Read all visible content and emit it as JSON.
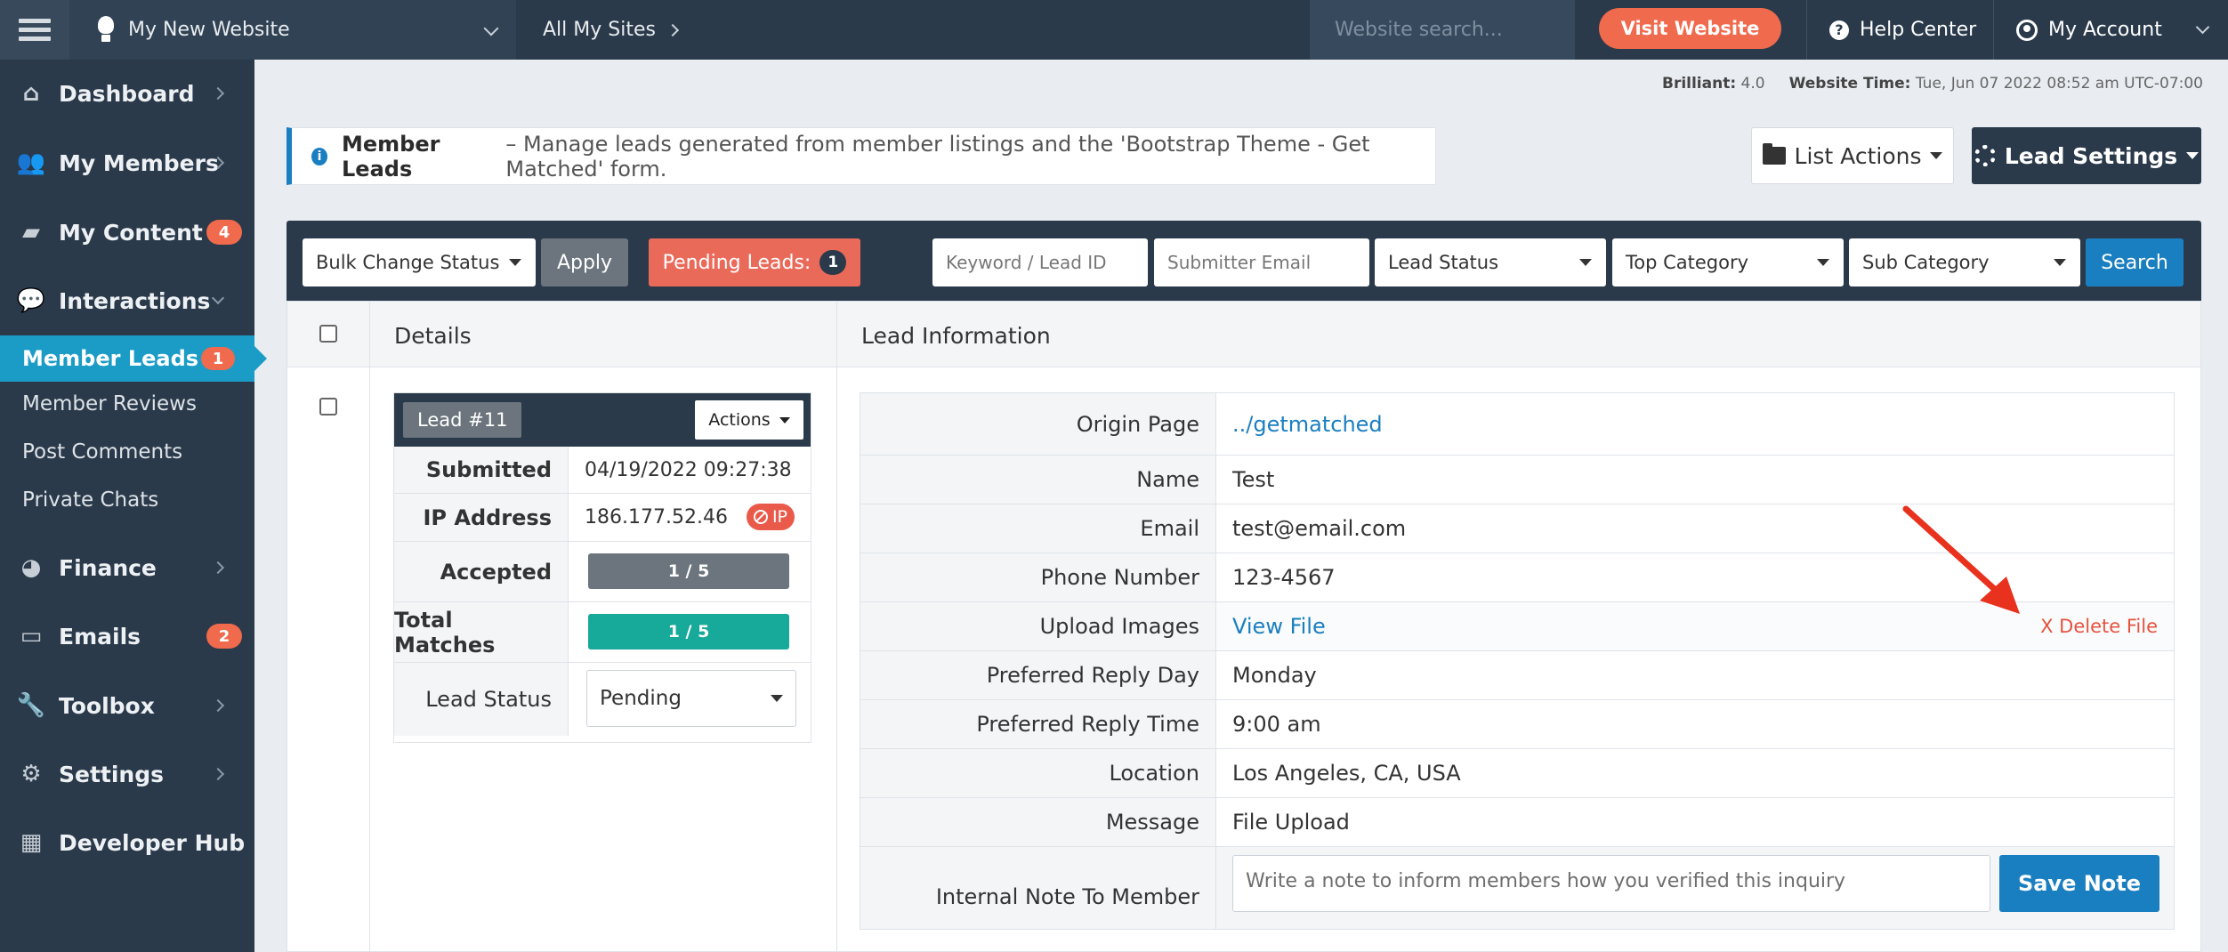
{
  "topbar": {
    "site_name": "My New Website",
    "all_sites": "All My Sites",
    "search_placeholder": "Website search...",
    "visit_label": "Visit Website",
    "help_label": "Help Center",
    "account_label": "My Account"
  },
  "sidebar": {
    "items": [
      {
        "label": "Dashboard",
        "icon": "home-icon"
      },
      {
        "label": "My Members",
        "icon": "users-icon"
      },
      {
        "label": "My Content",
        "icon": "folder-icon",
        "badge": "4"
      },
      {
        "label": "Interactions",
        "icon": "chat-icon"
      },
      {
        "label": "Finance",
        "icon": "pie-chart-icon"
      },
      {
        "label": "Emails",
        "icon": "inbox-icon",
        "badge": "2"
      },
      {
        "label": "Toolbox",
        "icon": "wrench-icon"
      },
      {
        "label": "Settings",
        "icon": "gear-icon"
      },
      {
        "label": "Developer Hub",
        "icon": "grid-icon"
      }
    ],
    "sub_items": [
      {
        "label": "Member Leads",
        "badge": "1"
      },
      {
        "label": "Member Reviews"
      },
      {
        "label": "Post Comments"
      },
      {
        "label": "Private Chats"
      }
    ]
  },
  "meta": {
    "brilliant_label": "Brilliant:",
    "brilliant_value": "4.0",
    "time_label": "Website Time:",
    "time_value": "Tue, Jun 07 2022 08:52 am UTC-07:00"
  },
  "info": {
    "title": "Member Leads",
    "text": "– Manage leads generated from member listings and the 'Bootstrap Theme - Get Matched' form."
  },
  "buttons": {
    "list_actions": "List Actions",
    "lead_settings": "Lead Settings"
  },
  "filters": {
    "bulk_change": "Bulk Change Status",
    "apply": "Apply",
    "pending_label": "Pending Leads:",
    "pending_count": "1",
    "keyword_placeholder": "Keyword / Lead ID",
    "email_placeholder": "Submitter Email",
    "lead_status": "Lead Status",
    "top_category": "Top Category",
    "sub_category": "Sub Category",
    "search": "Search"
  },
  "table": {
    "col_details": "Details",
    "col_info": "Lead Information"
  },
  "lead": {
    "number": "Lead #11",
    "actions": "Actions",
    "submitted_label": "Submitted",
    "submitted_value": "04/19/2022 09:27:38",
    "ip_label": "IP Address",
    "ip_value": "186.177.52.46",
    "ip_badge": "IP",
    "accepted_label": "Accepted",
    "accepted_value": "1 / 5",
    "matches_label": "Total Matches",
    "matches_value": "1 / 5",
    "status_label": "Lead Status",
    "status_value": "Pending"
  },
  "lead_info": {
    "rows": [
      {
        "label": "Origin Page",
        "value": "../getmatched"
      },
      {
        "label": "Name",
        "value": "Test"
      },
      {
        "label": "Email",
        "value": "test@email.com"
      },
      {
        "label": "Phone Number",
        "value": "123-4567"
      },
      {
        "label": "Upload Images",
        "value": "View File"
      },
      {
        "label": "Preferred Reply Day",
        "value": "Monday"
      },
      {
        "label": "Preferred Reply Time",
        "value": "9:00 am"
      },
      {
        "label": "Location",
        "value": "Los Angeles, CA, USA"
      },
      {
        "label": "Message",
        "value": "File Upload"
      }
    ],
    "delete_file": "X Delete File",
    "note_label": "Internal Note To Member",
    "note_placeholder": "Write a note to inform members how you verified this inquiry",
    "save_note": "Save Note"
  },
  "colors": {
    "navy": "#2a3a4b",
    "accent_blue": "#1a7fc0",
    "active_teal": "#1a9cc6",
    "coral": "#f06a4d",
    "accepted_gray": "#6c757d",
    "matches_teal": "#17a99a"
  }
}
